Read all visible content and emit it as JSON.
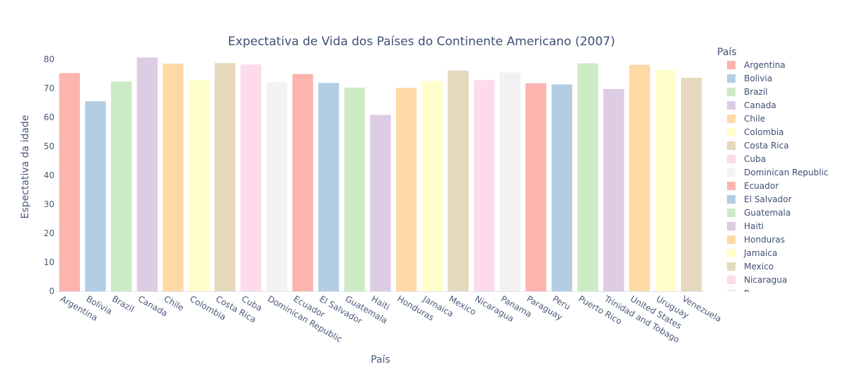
{
  "chart_data": {
    "type": "bar",
    "title": "Expectativa de Vida dos Países do Continente Americano (2007)",
    "xlabel": "País",
    "ylabel": "Espectativa da idade",
    "ylim": [
      0,
      82
    ],
    "yticks": [
      0,
      10,
      20,
      30,
      40,
      50,
      60,
      70,
      80
    ],
    "grid": false,
    "legend_title": "País",
    "legend_position": "right",
    "categories": [
      "Argentina",
      "Bolivia",
      "Brazil",
      "Canada",
      "Chile",
      "Colombia",
      "Costa Rica",
      "Cuba",
      "Dominican Republic",
      "Ecuador",
      "El Salvador",
      "Guatemala",
      "Haiti",
      "Honduras",
      "Jamaica",
      "Mexico",
      "Nicaragua",
      "Panama",
      "Paraguay",
      "Peru",
      "Puerto Rico",
      "Trinidad and Tobago",
      "United States",
      "Uruguay",
      "Venezuela"
    ],
    "values": [
      75.3,
      65.6,
      72.4,
      80.7,
      78.6,
      72.9,
      78.8,
      78.3,
      72.2,
      75.0,
      71.9,
      70.3,
      60.9,
      70.2,
      72.6,
      76.2,
      72.9,
      75.5,
      71.8,
      71.4,
      78.7,
      69.8,
      78.2,
      76.4,
      73.7
    ],
    "legend_entries": [
      "Argentina",
      "Bolivia",
      "Brazil",
      "Canada",
      "Chile",
      "Colombia",
      "Costa Rica",
      "Cuba",
      "Dominican Republic",
      "Ecuador",
      "El Salvador",
      "Guatemala",
      "Haiti",
      "Honduras",
      "Jamaica",
      "Mexico",
      "Nicaragua",
      "P"
    ],
    "colors": [
      "#fbb4ae",
      "#b3cde3",
      "#ccebc5",
      "#decbe4",
      "#fed9a6",
      "#ffffcc",
      "#e5d8bd",
      "#fddaec",
      "#f2f2f2",
      "#fbb4ae",
      "#b3cde3",
      "#ccebc5",
      "#decbe4",
      "#fed9a6",
      "#ffffcc",
      "#e5d8bd",
      "#fddaec",
      "#f2f2f2",
      "#fbb4ae",
      "#b3cde3",
      "#ccebc5",
      "#decbe4",
      "#fed9a6",
      "#ffffcc",
      "#e5d8bd"
    ]
  }
}
